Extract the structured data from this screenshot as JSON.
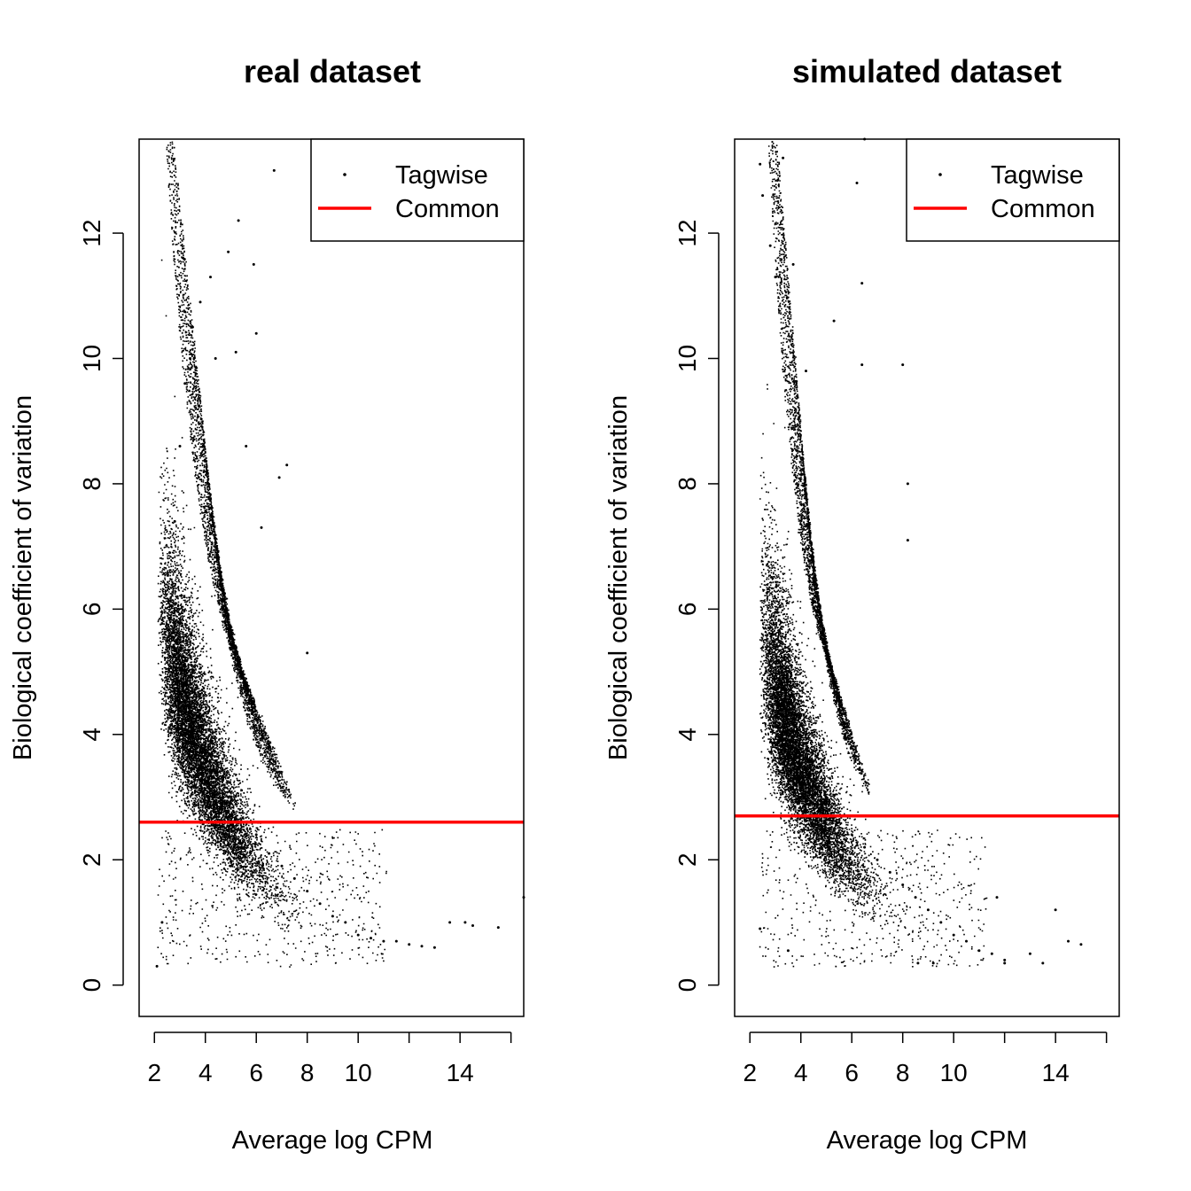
{
  "chart_data": [
    {
      "type": "scatter",
      "title": "real dataset",
      "xlabel": "Average log CPM",
      "ylabel": "Biological coefficient of variation",
      "xlim": [
        1.4,
        16.5
      ],
      "ylim": [
        -0.5,
        13.5
      ],
      "xticks": [
        2,
        4,
        6,
        8,
        10,
        12,
        14,
        16
      ],
      "xtick_labels": [
        "2",
        "4",
        "6",
        "8",
        "10",
        "",
        "14",
        ""
      ],
      "yticks": [
        0,
        2,
        4,
        6,
        8,
        10,
        12
      ],
      "ytick_labels": [
        "0",
        "2",
        "4",
        "6",
        "8",
        "10",
        "12"
      ],
      "grid": false,
      "legend": {
        "position": "top-right",
        "entries": [
          {
            "label": "Tagwise",
            "kind": "point",
            "color": "#000000"
          },
          {
            "label": "Common",
            "kind": "line",
            "color": "#ff0000"
          }
        ]
      },
      "common_value": 2.6,
      "series": [
        {
          "name": "Tagwise",
          "description": "approximately 15000 gene-wise points, streaked pattern at low log CPM, decreasing trend",
          "approx_point_count": 15000,
          "points": [
            [
              2.1,
              0.3
            ],
            [
              2.3,
              1.0
            ],
            [
              2.5,
              5.5
            ],
            [
              2.6,
              6.9
            ],
            [
              2.8,
              7.4
            ],
            [
              3.0,
              8.6
            ],
            [
              3.2,
              9.6
            ],
            [
              3.4,
              10.0
            ],
            [
              3.5,
              10.5
            ],
            [
              3.8,
              10.9
            ],
            [
              4.2,
              11.3
            ],
            [
              4.9,
              11.7
            ],
            [
              5.3,
              12.2
            ],
            [
              6.7,
              13.0
            ],
            [
              5.9,
              11.5
            ],
            [
              4.4,
              10.0
            ],
            [
              5.2,
              10.1
            ],
            [
              3.0,
              4.5
            ],
            [
              3.5,
              4.0
            ],
            [
              4.0,
              3.6
            ],
            [
              4.5,
              3.3
            ],
            [
              5.0,
              2.9
            ],
            [
              5.5,
              2.6
            ],
            [
              6.0,
              2.4
            ],
            [
              6.5,
              2.1
            ],
            [
              7.0,
              1.9
            ],
            [
              7.5,
              1.7
            ],
            [
              8.0,
              1.5
            ],
            [
              8.5,
              1.3
            ],
            [
              9.0,
              1.1
            ],
            [
              9.5,
              1.0
            ],
            [
              10.0,
              0.8
            ],
            [
              10.5,
              0.75
            ],
            [
              11.0,
              0.7
            ],
            [
              11.5,
              0.7
            ],
            [
              12.0,
              0.65
            ],
            [
              12.5,
              0.62
            ],
            [
              13.0,
              0.6
            ],
            [
              13.6,
              1.0
            ],
            [
              14.2,
              1.0
            ],
            [
              14.5,
              0.95
            ],
            [
              15.5,
              0.92
            ],
            [
              16.5,
              1.4
            ],
            [
              7.2,
              8.3
            ],
            [
              6.9,
              8.1
            ],
            [
              6.2,
              7.3
            ],
            [
              8.0,
              5.3
            ],
            [
              6.0,
              10.4
            ],
            [
              5.6,
              8.6
            ]
          ]
        }
      ]
    },
    {
      "type": "scatter",
      "title": "simulated dataset",
      "xlabel": "Average log CPM",
      "ylabel": "Biological coefficient of variation",
      "xlim": [
        1.4,
        16.5
      ],
      "ylim": [
        -0.5,
        13.5
      ],
      "xticks": [
        2,
        4,
        6,
        8,
        10,
        12,
        14,
        16
      ],
      "xtick_labels": [
        "2",
        "4",
        "6",
        "8",
        "10",
        "",
        "14",
        ""
      ],
      "yticks": [
        0,
        2,
        4,
        6,
        8,
        10,
        12
      ],
      "ytick_labels": [
        "0",
        "2",
        "4",
        "6",
        "8",
        "10",
        "12"
      ],
      "grid": false,
      "legend": {
        "position": "top-right",
        "entries": [
          {
            "label": "Tagwise",
            "kind": "point",
            "color": "#000000"
          },
          {
            "label": "Common",
            "kind": "line",
            "color": "#ff0000"
          }
        ]
      },
      "common_value": 2.7,
      "series": [
        {
          "name": "Tagwise",
          "description": "approximately 15000 gene-wise points, streaked pattern at low log CPM, decreasing trend",
          "approx_point_count": 15000,
          "points": [
            [
              2.4,
              0.9
            ],
            [
              2.4,
              13.1
            ],
            [
              2.5,
              12.6
            ],
            [
              2.8,
              11.8
            ],
            [
              3.3,
              13.2
            ],
            [
              3.0,
              11.3
            ],
            [
              3.7,
              11.5
            ],
            [
              4.2,
              9.8
            ],
            [
              5.3,
              10.6
            ],
            [
              6.5,
              13.5
            ],
            [
              6.2,
              12.8
            ],
            [
              6.4,
              11.2
            ],
            [
              8.0,
              9.9
            ],
            [
              6.4,
              9.9
            ],
            [
              8.2,
              8.0
            ],
            [
              8.2,
              7.1
            ],
            [
              3.0,
              4.3
            ],
            [
              3.5,
              3.8
            ],
            [
              4.0,
              3.5
            ],
            [
              4.5,
              3.2
            ],
            [
              5.0,
              2.9
            ],
            [
              5.5,
              2.6
            ],
            [
              6.0,
              2.4
            ],
            [
              6.5,
              2.2
            ],
            [
              7.0,
              2.0
            ],
            [
              7.5,
              1.8
            ],
            [
              8.0,
              1.6
            ],
            [
              8.5,
              1.4
            ],
            [
              9.0,
              1.2
            ],
            [
              9.5,
              1.0
            ],
            [
              10.0,
              0.8
            ],
            [
              10.5,
              0.7
            ],
            [
              11.0,
              0.55
            ],
            [
              11.5,
              0.5
            ],
            [
              12.0,
              0.4
            ],
            [
              12.0,
              0.35
            ],
            [
              13.0,
              0.5
            ],
            [
              13.5,
              0.35
            ],
            [
              14.0,
              1.2
            ],
            [
              14.5,
              0.7
            ],
            [
              15.0,
              0.65
            ],
            [
              11.7,
              1.4
            ],
            [
              9.2,
              0.35
            ],
            [
              8.6,
              0.35
            ],
            [
              3.5,
              0.55
            ]
          ]
        }
      ]
    }
  ]
}
